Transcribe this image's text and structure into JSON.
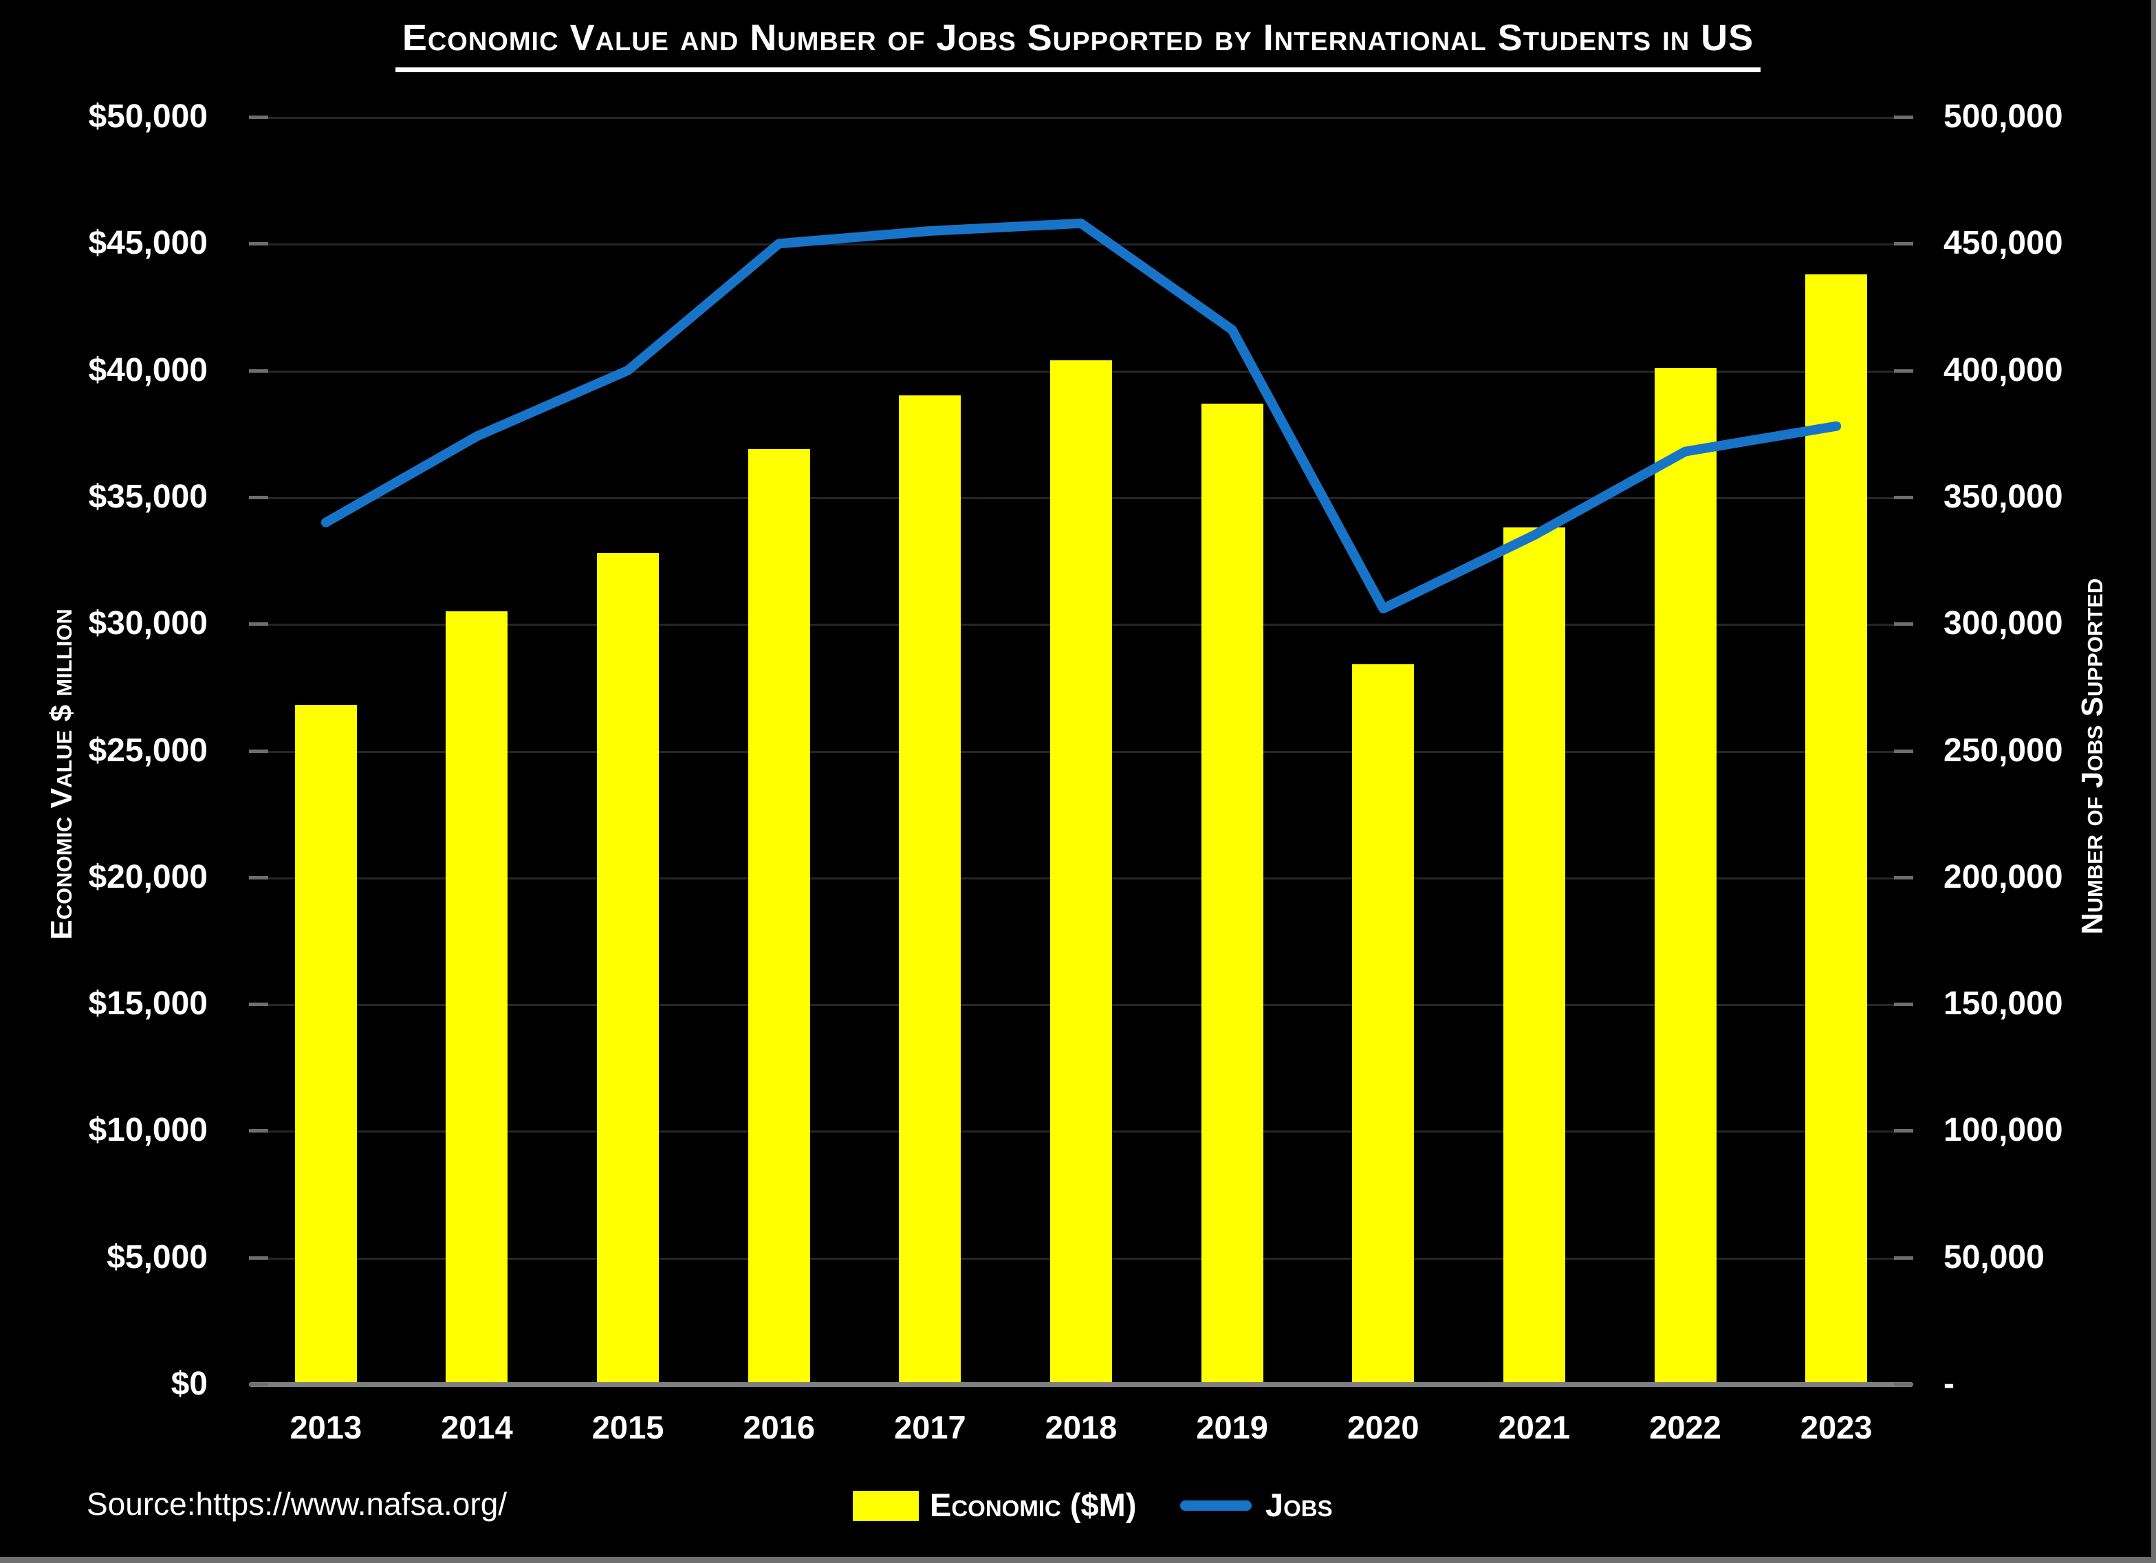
{
  "title": "Economic Value and Number of Jobs Supported by International Students in US",
  "source": "Source:https://www.nafsa.org/",
  "left_axis": {
    "title": "Economic Value $ million",
    "ticks": [
      "$50,000",
      "$45,000",
      "$40,000",
      "$35,000",
      "$30,000",
      "$25,000",
      "$20,000",
      "$15,000",
      "$10,000",
      "$5,000",
      "$0"
    ]
  },
  "right_axis": {
    "title": "Number of Jobs Supported",
    "ticks": [
      "500,000",
      "450,000",
      "400,000",
      "350,000",
      "300,000",
      "250,000",
      "200,000",
      "150,000",
      "100,000",
      "50,000",
      "-"
    ]
  },
  "legend": {
    "economic_label": "Economic ($M)",
    "jobs_label": "Jobs"
  },
  "colors": {
    "bar": "#FFFF00",
    "line": "#1874C8",
    "grid": "#262626",
    "axis_line": "#7f7f7f",
    "tick": "#6e6e6e",
    "text": "#FFFFFF",
    "background": "#000000"
  },
  "chart_data": {
    "type": "bar",
    "subtype": "combo-bar-line",
    "title": "Economic Value and Number of Jobs Supported by International Students in US",
    "categories": [
      "2013",
      "2014",
      "2015",
      "2016",
      "2017",
      "2018",
      "2019",
      "2020",
      "2021",
      "2022",
      "2023"
    ],
    "series": [
      {
        "name": "Economic ($M)",
        "type": "bar",
        "axis": "left",
        "color": "#FFFF00",
        "values": [
          26800,
          30500,
          32800,
          36900,
          39000,
          40400,
          38700,
          28400,
          33800,
          40100,
          43800
        ]
      },
      {
        "name": "Jobs",
        "type": "line",
        "axis": "right",
        "color": "#1874C8",
        "values": [
          340000,
          374000,
          400000,
          450000,
          455000,
          458000,
          416000,
          306000,
          335000,
          368000,
          378000
        ]
      }
    ],
    "xlabel": "",
    "ylabel_left": "Economic Value $ million",
    "ylabel_right": "Number of Jobs Supported",
    "ylim_left": [
      0,
      50000
    ],
    "ylim_right": [
      0,
      500000
    ],
    "grid": true,
    "legend_position": "bottom"
  }
}
